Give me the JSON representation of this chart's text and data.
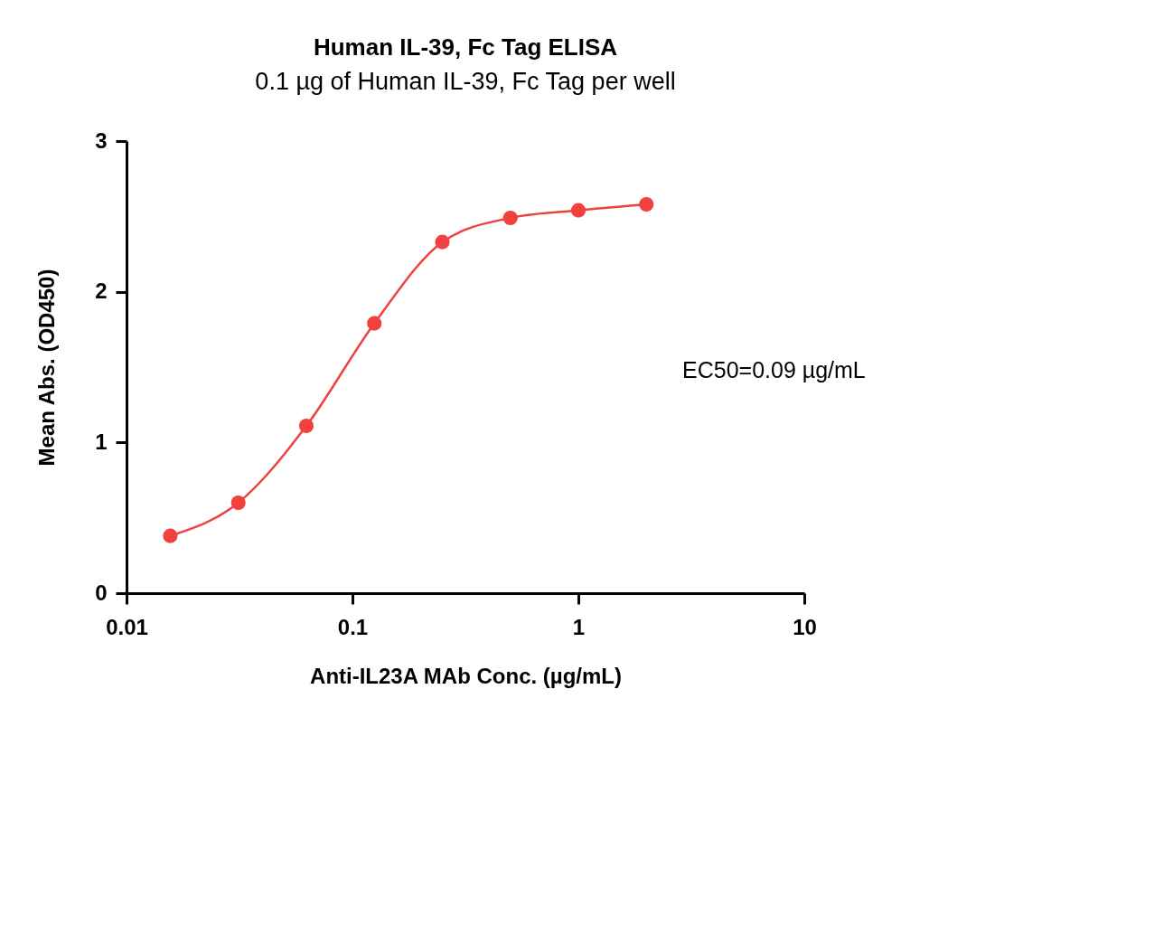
{
  "chart_data": {
    "type": "line",
    "title": "Human IL-39, Fc Tag ELISA",
    "subtitle": "0.1 µg of Human IL-39, Fc Tag per well",
    "xlabel": "Anti-IL23A MAb  Conc. (µg/mL)",
    "ylabel": "Mean Abs. (OD450)",
    "x": [
      0.015625,
      0.03125,
      0.0625,
      0.125,
      0.25,
      0.5,
      1,
      2
    ],
    "series": [
      {
        "color": "#f0413f",
        "values": [
          0.38,
          0.6,
          1.11,
          1.79,
          2.33,
          2.49,
          2.54,
          2.58
        ]
      }
    ],
    "log": "x",
    "xlim": [
      0.01,
      10
    ],
    "xticks": [
      0.01,
      0.1,
      1,
      10
    ],
    "ylim": [
      0,
      3
    ],
    "yticks": [
      0,
      1,
      2,
      3
    ],
    "grid": false,
    "marker": "circle",
    "line_style": "solid",
    "annotations": [
      "EC50=0.09 µg/mL"
    ]
  }
}
